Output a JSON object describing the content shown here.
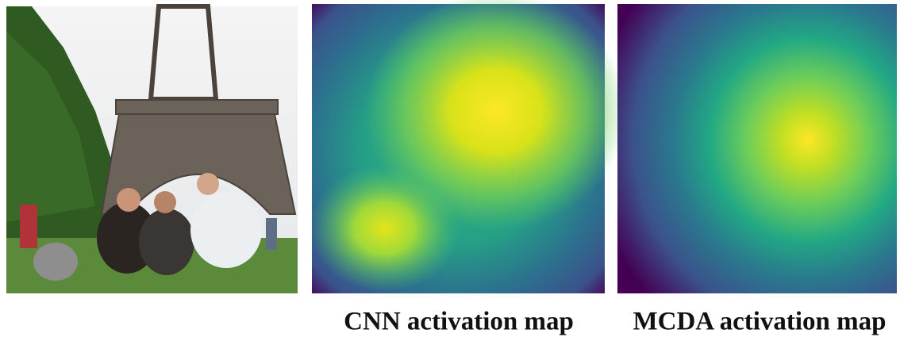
{
  "captions": [
    "CNN activation map",
    "MCDA activation map"
  ]
}
